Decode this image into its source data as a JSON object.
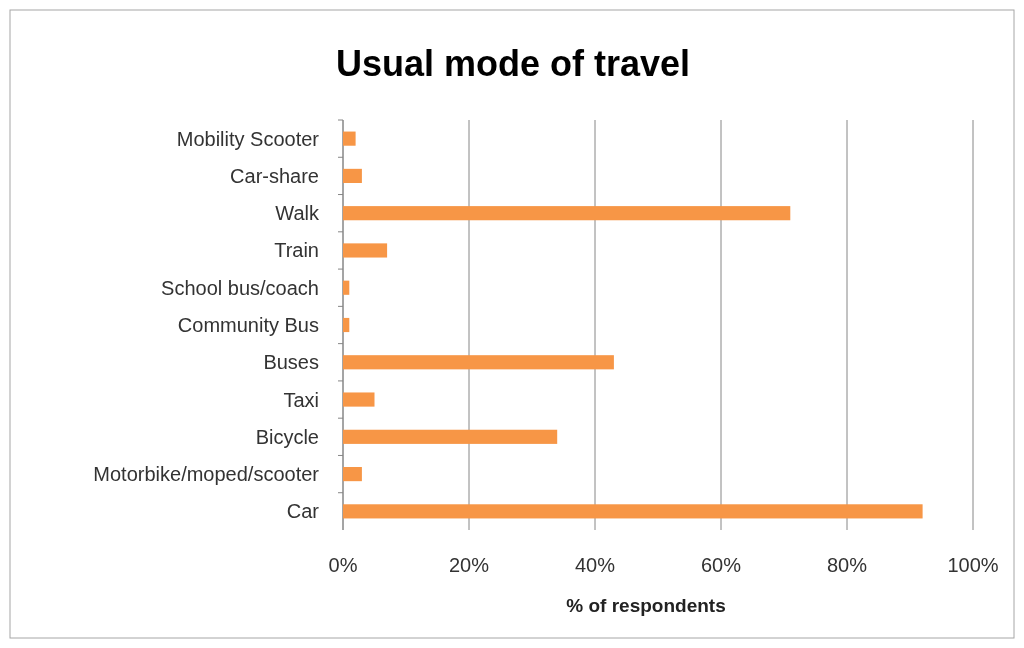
{
  "chart_data": {
    "type": "bar",
    "orientation": "horizontal",
    "title": "Usual mode of travel",
    "xlabel": "% of respondents",
    "categories": [
      "Mobility Scooter",
      "Car-share",
      "Walk",
      "Train",
      "School bus/coach",
      "Community Bus",
      "Buses",
      "Taxi",
      "Bicycle",
      "Motorbike/moped/scooter",
      "Car"
    ],
    "values": [
      2,
      3,
      71,
      7,
      1,
      1,
      43,
      5,
      34,
      3,
      92
    ],
    "color": "#f79646",
    "xlim": [
      0,
      100
    ],
    "xticks": [
      {
        "value": 0,
        "label": "0%"
      },
      {
        "value": 20,
        "label": "20%"
      },
      {
        "value": 40,
        "label": "40%"
      },
      {
        "value": 60,
        "label": "60%"
      },
      {
        "value": 80,
        "label": "80%"
      },
      {
        "value": 100,
        "label": "100%"
      }
    ],
    "grid": "x"
  }
}
